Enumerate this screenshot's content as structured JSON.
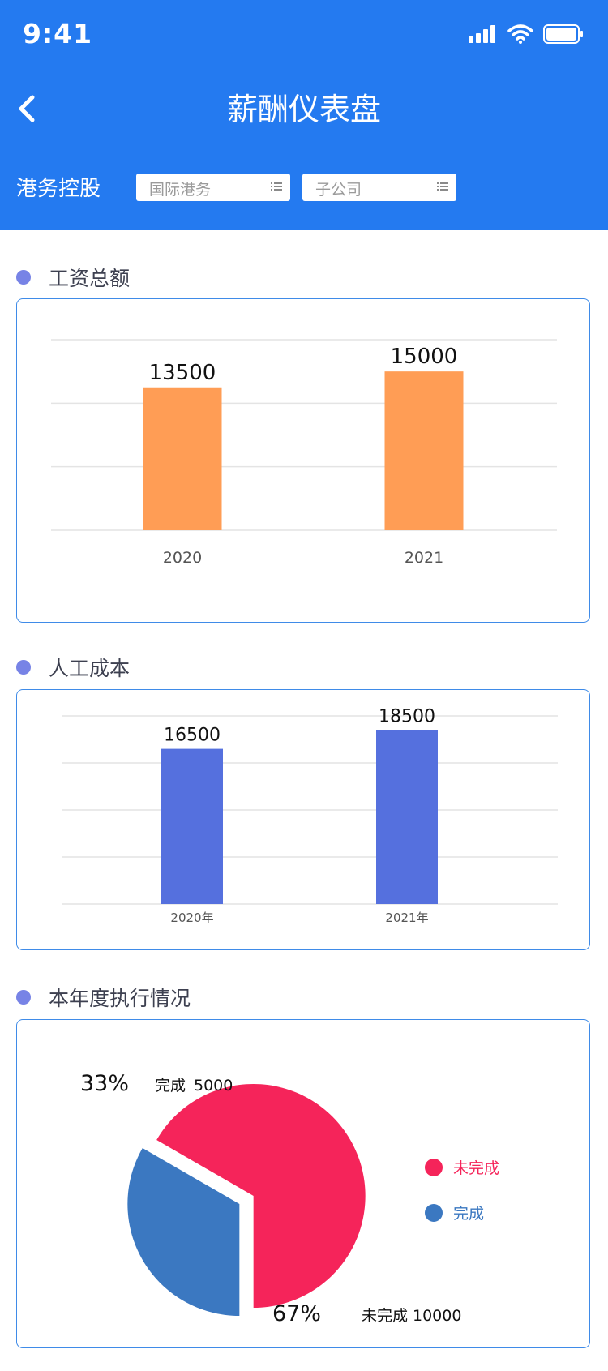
{
  "status_bar": {
    "time": "9:41"
  },
  "header": {
    "title": "薪酬仪表盘",
    "filter_label": "港务控股",
    "select_1": "国际港务",
    "select_2": "子公司"
  },
  "sections": {
    "salary_total": "工资总额",
    "labor_cost": "人工成本",
    "execution": "本年度执行情况"
  },
  "chart_data": [
    {
      "type": "bar",
      "categories": [
        "2020",
        "2021"
      ],
      "values": [
        13500,
        15000
      ],
      "color": "#ff9d55",
      "ylim": [
        0,
        18000
      ]
    },
    {
      "type": "bar",
      "categories": [
        "2020年",
        "2021年"
      ],
      "values": [
        16500,
        18500
      ],
      "color": "#5570de",
      "ylim": [
        0,
        20000
      ]
    },
    {
      "type": "pie",
      "slices": [
        {
          "name": "未完成",
          "value": 10000,
          "percent": "67%",
          "color": "#f5245a"
        },
        {
          "name": "完成",
          "value": 5000,
          "percent": "33%",
          "color": "#3b78c1"
        }
      ],
      "legend_position": "right"
    }
  ]
}
